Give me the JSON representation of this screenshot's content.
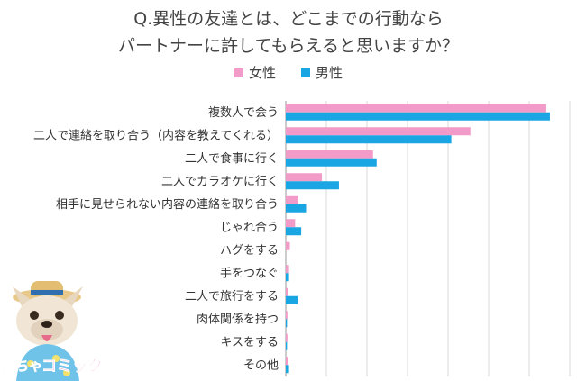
{
  "colors": {
    "female": "#f29bc9",
    "male": "#1aa6e3",
    "grid": "#d9d9d9",
    "axis": "#999999"
  },
  "logo": {
    "text_left": "めちゃ",
    "text_right": "コミック"
  },
  "chart_data": {
    "type": "bar",
    "orientation": "horizontal",
    "title_lines": [
      "Q.異性の友達とは、どこまでの行動なら",
      "パートナーに許してもらえると思いますか？"
    ],
    "legend_position": "top-center",
    "grid": true,
    "xlim": [
      0,
      70
    ],
    "categories": [
      "複数人で会う",
      "二人で連絡を取り合う（内容を教えてくれる）",
      "二人で食事に行く",
      "二人でカラオケに行く",
      "相手に見せられない内容の連絡を取り合う",
      "じゃれ合う",
      "ハグをする",
      "手をつなぐ",
      "二人で旅行をする",
      "肉体関係を持つ",
      "キスをする",
      "その他"
    ],
    "series": [
      {
        "name": "女性",
        "color": "#f29bc9",
        "values": [
          64.2,
          45.5,
          21.5,
          8.9,
          3.1,
          2.3,
          1.0,
          0.8,
          0.6,
          0.4,
          0.4,
          0.5
        ]
      },
      {
        "name": "男性",
        "color": "#1aa6e3",
        "values": [
          65.1,
          40.8,
          22.4,
          13.1,
          5.0,
          3.8,
          0.0,
          0.8,
          2.9,
          0.3,
          0.3,
          0.8
        ]
      }
    ]
  }
}
